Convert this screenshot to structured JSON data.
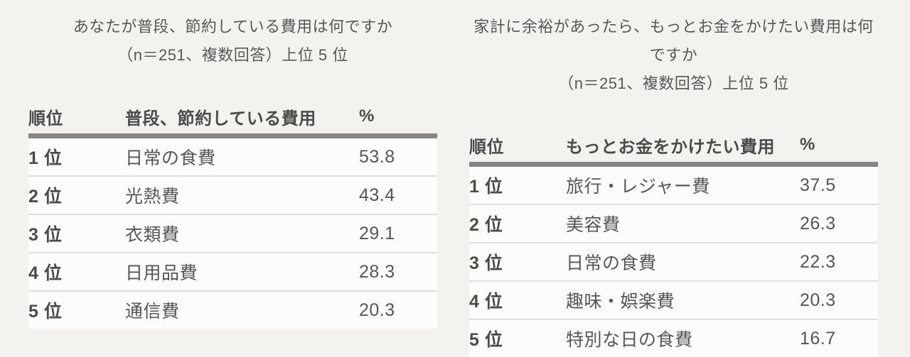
{
  "colors": {
    "page_background": "#f3f2ef",
    "row_background": "#fcfcfb",
    "header_rule": "#868686",
    "row_divider": "#e0ded9",
    "text": "#565656",
    "text_bold": "#4b4b4b"
  },
  "chart_data": [
    {
      "type": "table",
      "title": "あなたが普段、節約している費用は何ですか",
      "subtitle": "（n＝251、複数回答）上位 5 位",
      "sample_size": "n＝251",
      "columns": [
        "順位",
        "普段、節約している費用",
        "%"
      ],
      "rows": [
        {
          "rank": "1 位",
          "item": "日常の食費",
          "pct": "53.8"
        },
        {
          "rank": "2 位",
          "item": "光熱費",
          "pct": "43.4"
        },
        {
          "rank": "3 位",
          "item": "衣類費",
          "pct": "29.1"
        },
        {
          "rank": "4 位",
          "item": "日用品費",
          "pct": "28.3"
        },
        {
          "rank": "5 位",
          "item": "通信費",
          "pct": "20.3"
        }
      ]
    },
    {
      "type": "table",
      "title": "家計に余裕があったら、もっとお金をかけたい費用は何ですか",
      "subtitle": "（n＝251、複数回答）上位 5 位",
      "sample_size": "n＝251",
      "columns": [
        "順位",
        "もっとお金をかけたい費用",
        "%"
      ],
      "rows": [
        {
          "rank": "1 位",
          "item": "旅行・レジャー費",
          "pct": "37.5"
        },
        {
          "rank": "2 位",
          "item": "美容費",
          "pct": "26.3"
        },
        {
          "rank": "3 位",
          "item": "日常の食費",
          "pct": "22.3"
        },
        {
          "rank": "4 位",
          "item": "趣味・娯楽費",
          "pct": "20.3"
        },
        {
          "rank": "5 位",
          "item": "特別な日の食費",
          "pct": "16.7"
        }
      ]
    }
  ]
}
